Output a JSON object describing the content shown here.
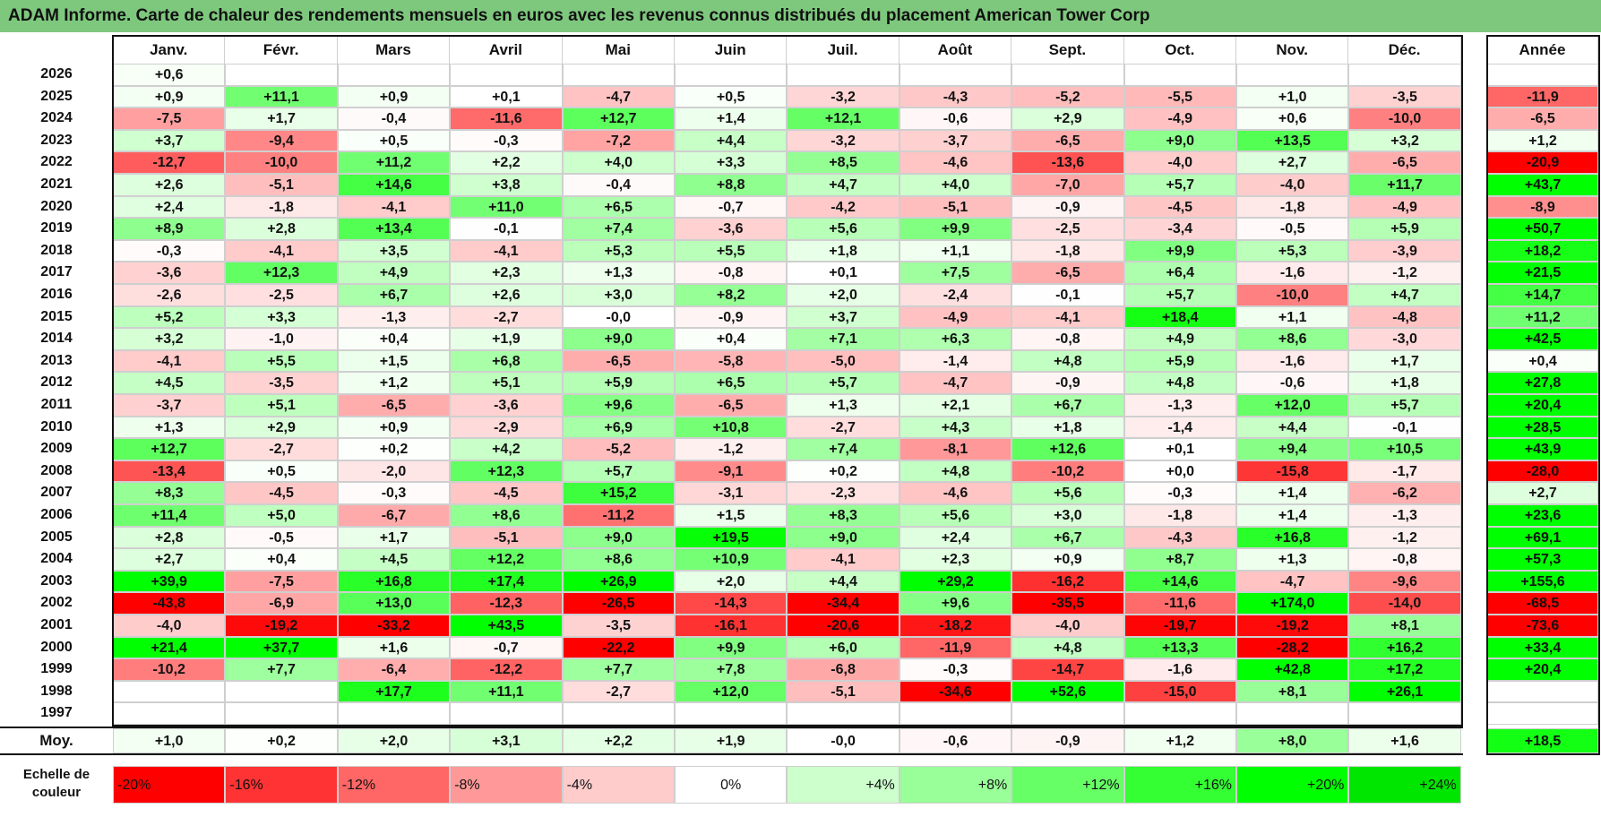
{
  "title": "ADAM Informe. Carte de chaleur des rendements mensuels en euros avec les revenus connus distribués du placement American Tower Corp",
  "chart_data": {
    "type": "heatmap",
    "months": [
      "Janv.",
      "Févr.",
      "Mars",
      "Avril",
      "Mai",
      "Juin",
      "Juil.",
      "Août",
      "Sept.",
      "Oct.",
      "Nov.",
      "Déc."
    ],
    "year_label": "Année",
    "rows": [
      {
        "year": "2026",
        "values": [
          "+0,6",
          "",
          "",
          "",
          "",
          "",
          "",
          "",
          "",
          "",
          "",
          ""
        ],
        "annual": ""
      },
      {
        "year": "2025",
        "values": [
          "+0,9",
          "+11,1",
          "+0,9",
          "+0,1",
          "-4,7",
          "+0,5",
          "-3,2",
          "-4,3",
          "-5,2",
          "-5,5",
          "+1,0",
          "-3,5"
        ],
        "annual": "-11,9"
      },
      {
        "year": "2024",
        "values": [
          "-7,5",
          "+1,7",
          "-0,4",
          "-11,6",
          "+12,7",
          "+1,4",
          "+12,1",
          "-0,6",
          "+2,9",
          "-4,9",
          "+0,6",
          "-10,0"
        ],
        "annual": "-6,5"
      },
      {
        "year": "2023",
        "values": [
          "+3,7",
          "-9,4",
          "+0,5",
          "-0,3",
          "-7,2",
          "+4,4",
          "-3,2",
          "-3,7",
          "-6,5",
          "+9,0",
          "+13,5",
          "+3,2"
        ],
        "annual": "+1,2"
      },
      {
        "year": "2022",
        "values": [
          "-12,7",
          "-10,0",
          "+11,2",
          "+2,2",
          "+4,0",
          "+3,3",
          "+8,5",
          "-4,6",
          "-13,6",
          "-4,0",
          "+2,7",
          "-6,5"
        ],
        "annual": "-20,9"
      },
      {
        "year": "2021",
        "values": [
          "+2,6",
          "-5,1",
          "+14,6",
          "+3,8",
          "-0,4",
          "+8,8",
          "+4,7",
          "+4,0",
          "-7,0",
          "+5,7",
          "-4,0",
          "+11,7"
        ],
        "annual": "+43,7"
      },
      {
        "year": "2020",
        "values": [
          "+2,4",
          "-1,8",
          "-4,1",
          "+11,0",
          "+6,5",
          "-0,7",
          "-4,2",
          "-5,1",
          "-0,9",
          "-4,5",
          "-1,8",
          "-4,9"
        ],
        "annual": "-8,9"
      },
      {
        "year": "2019",
        "values": [
          "+8,9",
          "+2,8",
          "+13,4",
          "-0,1",
          "+7,4",
          "-3,6",
          "+5,6",
          "+9,9",
          "-2,5",
          "-3,4",
          "-0,5",
          "+5,9"
        ],
        "annual": "+50,7"
      },
      {
        "year": "2018",
        "values": [
          "-0,3",
          "-4,1",
          "+3,5",
          "-4,1",
          "+5,3",
          "+5,5",
          "+1,8",
          "+1,1",
          "-1,8",
          "+9,9",
          "+5,3",
          "-3,9"
        ],
        "annual": "+18,2"
      },
      {
        "year": "2017",
        "values": [
          "-3,6",
          "+12,3",
          "+4,9",
          "+2,3",
          "+1,3",
          "-0,8",
          "+0,1",
          "+7,5",
          "-6,5",
          "+6,4",
          "-1,6",
          "-1,2"
        ],
        "annual": "+21,5"
      },
      {
        "year": "2016",
        "values": [
          "-2,6",
          "-2,5",
          "+6,7",
          "+2,6",
          "+3,0",
          "+8,2",
          "+2,0",
          "-2,4",
          "-0,1",
          "+5,7",
          "-10,0",
          "+4,7"
        ],
        "annual": "+14,7"
      },
      {
        "year": "2015",
        "values": [
          "+5,2",
          "+3,3",
          "-1,3",
          "-2,7",
          "-0,0",
          "-0,9",
          "+3,7",
          "-4,9",
          "-4,1",
          "+18,4",
          "+1,1",
          "-4,8"
        ],
        "annual": "+11,2"
      },
      {
        "year": "2014",
        "values": [
          "+3,2",
          "-1,0",
          "+0,4",
          "+1,9",
          "+9,0",
          "+0,4",
          "+7,1",
          "+6,3",
          "-0,8",
          "+4,9",
          "+8,6",
          "-3,0"
        ],
        "annual": "+42,5"
      },
      {
        "year": "2013",
        "values": [
          "-4,1",
          "+5,5",
          "+1,5",
          "+6,8",
          "-6,5",
          "-5,8",
          "-5,0",
          "-1,4",
          "+4,8",
          "+5,9",
          "-1,6",
          "+1,7"
        ],
        "annual": "+0,4"
      },
      {
        "year": "2012",
        "values": [
          "+4,5",
          "-3,5",
          "+1,2",
          "+5,1",
          "+5,9",
          "+6,5",
          "+5,7",
          "-4,7",
          "-0,9",
          "+4,8",
          "-0,6",
          "+1,8"
        ],
        "annual": "+27,8"
      },
      {
        "year": "2011",
        "values": [
          "-3,7",
          "+5,1",
          "-6,5",
          "-3,6",
          "+9,6",
          "-6,5",
          "+1,3",
          "+2,1",
          "+6,7",
          "-1,3",
          "+12,0",
          "+5,7"
        ],
        "annual": "+20,4"
      },
      {
        "year": "2010",
        "values": [
          "+1,3",
          "+2,9",
          "+0,9",
          "-2,9",
          "+6,9",
          "+10,8",
          "-2,7",
          "+4,3",
          "+1,8",
          "-1,4",
          "+4,4",
          "-0,1"
        ],
        "annual": "+28,5"
      },
      {
        "year": "2009",
        "values": [
          "+12,7",
          "-2,7",
          "+0,2",
          "+4,2",
          "-5,2",
          "-1,2",
          "+7,4",
          "-8,1",
          "+12,6",
          "+0,1",
          "+9,4",
          "+10,5"
        ],
        "annual": "+43,9"
      },
      {
        "year": "2008",
        "values": [
          "-13,4",
          "+0,5",
          "-2,0",
          "+12,3",
          "+5,7",
          "-9,1",
          "+0,2",
          "+4,8",
          "-10,2",
          "+0,0",
          "-15,8",
          "-1,7"
        ],
        "annual": "-28,0"
      },
      {
        "year": "2007",
        "values": [
          "+8,3",
          "-4,5",
          "-0,3",
          "-4,5",
          "+15,2",
          "-3,1",
          "-2,3",
          "-4,6",
          "+5,6",
          "-0,3",
          "+1,4",
          "-6,2"
        ],
        "annual": "+2,7"
      },
      {
        "year": "2006",
        "values": [
          "+11,4",
          "+5,0",
          "-6,7",
          "+8,6",
          "-11,2",
          "+1,5",
          "+8,3",
          "+5,6",
          "+3,0",
          "-1,8",
          "+1,4",
          "-1,3"
        ],
        "annual": "+23,6"
      },
      {
        "year": "2005",
        "values": [
          "+2,8",
          "-0,5",
          "+1,7",
          "-5,1",
          "+9,0",
          "+19,5",
          "+9,0",
          "+2,4",
          "+6,7",
          "-4,3",
          "+16,8",
          "-1,2"
        ],
        "annual": "+69,1"
      },
      {
        "year": "2004",
        "values": [
          "+2,7",
          "+0,4",
          "+4,5",
          "+12,2",
          "+8,6",
          "+10,9",
          "-4,1",
          "+2,3",
          "+0,9",
          "+8,7",
          "+1,3",
          "-0,8"
        ],
        "annual": "+57,3"
      },
      {
        "year": "2003",
        "values": [
          "+39,9",
          "-7,5",
          "+16,8",
          "+17,4",
          "+26,9",
          "+2,0",
          "+4,4",
          "+29,2",
          "-16,2",
          "+14,6",
          "-4,7",
          "-9,6"
        ],
        "annual": "+155,6"
      },
      {
        "year": "2002",
        "values": [
          "-43,8",
          "-6,9",
          "+13,0",
          "-12,3",
          "-26,5",
          "-14,3",
          "-34,4",
          "+9,6",
          "-35,5",
          "-11,6",
          "+174,0",
          "-14,0"
        ],
        "annual": "-68,5"
      },
      {
        "year": "2001",
        "values": [
          "-4,0",
          "-19,2",
          "-33,2",
          "+43,5",
          "-3,5",
          "-16,1",
          "-20,6",
          "-18,2",
          "-4,0",
          "-19,7",
          "-19,2",
          "+8,1"
        ],
        "annual": "-73,6"
      },
      {
        "year": "2000",
        "values": [
          "+21,4",
          "+37,7",
          "+1,6",
          "-0,7",
          "-22,2",
          "+9,9",
          "+6,0",
          "-11,9",
          "+4,8",
          "+13,3",
          "-28,2",
          "+16,2"
        ],
        "annual": "+33,4"
      },
      {
        "year": "1999",
        "values": [
          "-10,2",
          "+7,7",
          "-6,4",
          "-12,2",
          "+7,7",
          "+7,8",
          "-6,8",
          "-0,3",
          "-14,7",
          "-1,6",
          "+42,8",
          "+17,2"
        ],
        "annual": "+20,4"
      },
      {
        "year": "1998",
        "values": [
          "",
          "",
          "+17,7",
          "+11,1",
          "-2,7",
          "+12,0",
          "-5,1",
          "-34,6",
          "+52,6",
          "-15,0",
          "+8,1",
          "+26,1"
        ],
        "annual": ""
      },
      {
        "year": "1997",
        "values": [
          "",
          "",
          "",
          "",
          "",
          "",
          "",
          "",
          "",
          "",
          "",
          ""
        ],
        "annual": ""
      }
    ],
    "average_label": "Moy.",
    "average": [
      "+1,0",
      "+0,2",
      "+2,0",
      "+3,1",
      "+2,2",
      "+1,9",
      "-0,0",
      "-0,6",
      "-0,9",
      "+1,2",
      "+8,0",
      "+1,6"
    ],
    "average_annual": "+18,5",
    "scale_label_line1": "Echelle de",
    "scale_label_line2": "couleur",
    "scale": [
      {
        "label": "-20%",
        "value": -20,
        "color": "#ff0000"
      },
      {
        "label": "-16%",
        "value": -16,
        "color": "#ff3333"
      },
      {
        "label": "-12%",
        "value": -12,
        "color": "#ff6666"
      },
      {
        "label": "-8%",
        "value": -8,
        "color": "#ff9999"
      },
      {
        "label": "-4%",
        "value": -4,
        "color": "#ffcccc"
      },
      {
        "label": "0%",
        "value": 0,
        "color": "#ffffff"
      },
      {
        "label": "+4%",
        "value": 4,
        "color": "#ccffcc"
      },
      {
        "label": "+8%",
        "value": 8,
        "color": "#99ff99"
      },
      {
        "label": "+12%",
        "value": 12,
        "color": "#66ff66"
      },
      {
        "label": "+16%",
        "value": 16,
        "color": "#33ff33"
      },
      {
        "label": "+20%",
        "value": 20,
        "color": "#00ff00"
      },
      {
        "label": "+24%",
        "value": 24,
        "color": "#00e600"
      }
    ]
  }
}
